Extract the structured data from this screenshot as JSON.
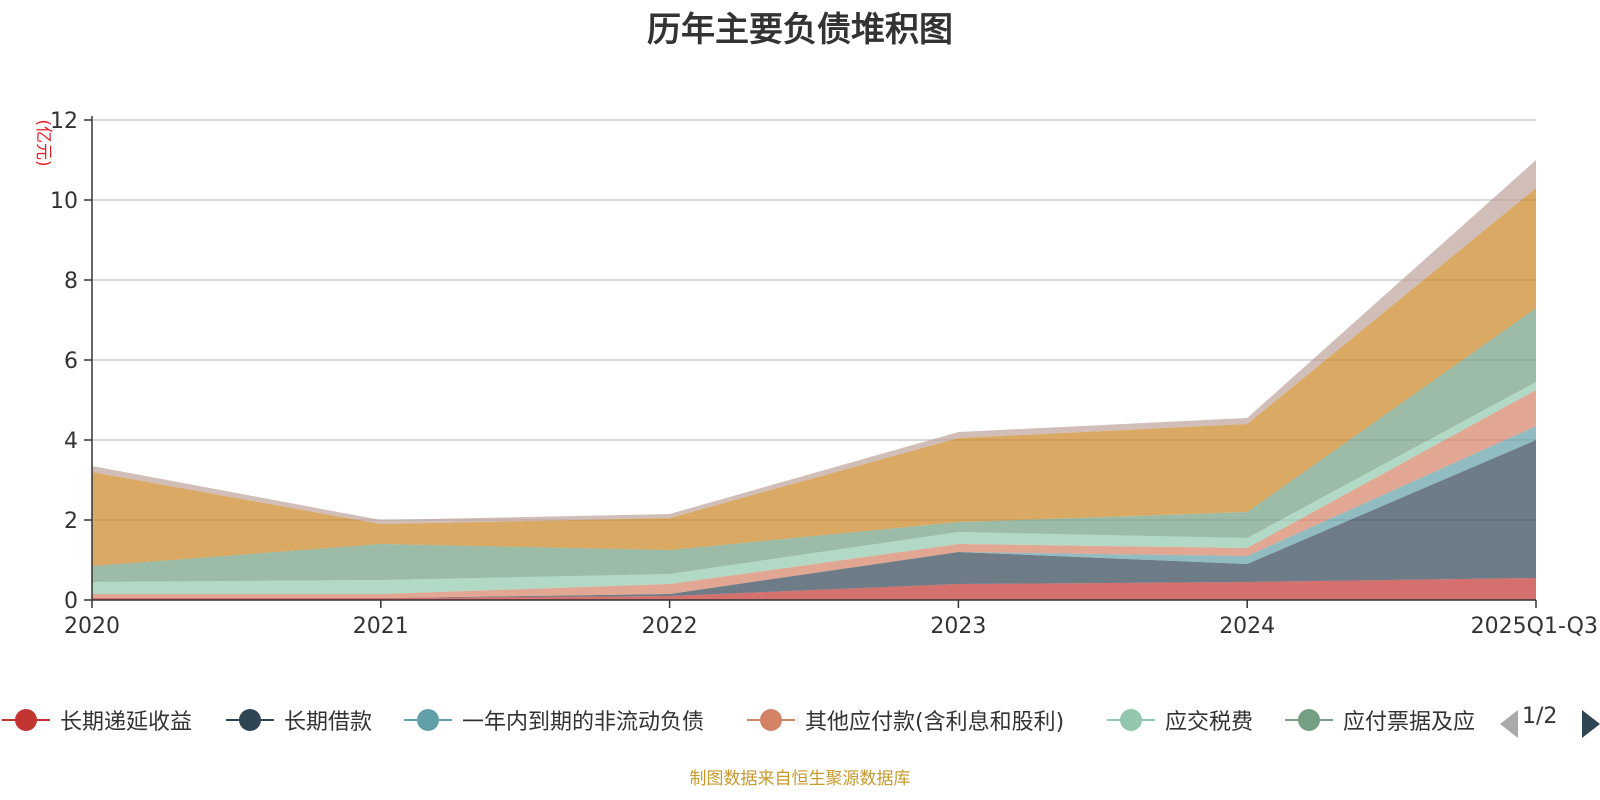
{
  "chart_data": {
    "type": "area",
    "stacked": true,
    "title": "历年主要负债堆积图",
    "ylabel": "(亿元)",
    "xlabel": "",
    "ylim": [
      0,
      12
    ],
    "yticks": [
      0,
      2,
      4,
      6,
      8,
      10,
      12
    ],
    "grid": true,
    "legend_position": "bottom",
    "categories": [
      "2020",
      "2021",
      "2022",
      "2023",
      "2024",
      "2025Q1-Q3"
    ],
    "series": [
      {
        "name": "长期递延收益",
        "color": "#c23531",
        "values": [
          0.05,
          0.05,
          0.1,
          0.4,
          0.45,
          0.55
        ]
      },
      {
        "name": "长期借款",
        "color": "#2f4554",
        "values": [
          0,
          0,
          0.05,
          0.8,
          0.45,
          3.45
        ]
      },
      {
        "name": "一年内到期的非流动负债",
        "color": "#61a0a8",
        "values": [
          0,
          0,
          0,
          0,
          0.2,
          0.35
        ]
      },
      {
        "name": "其他应付款(含利息和股利)",
        "color": "#d48265",
        "values": [
          0.1,
          0.1,
          0.25,
          0.2,
          0.2,
          0.9
        ]
      },
      {
        "name": "应交税费",
        "color": "#91c7ae",
        "values": [
          0.3,
          0.35,
          0.25,
          0.3,
          0.25,
          0.2
        ]
      },
      {
        "name": "应付票据及应付账款",
        "color": "#749f83",
        "values": [
          0.4,
          0.9,
          0.6,
          0.25,
          0.65,
          1.85
        ]
      },
      {
        "name": "",
        "color": "#ca8622",
        "values": [
          2.35,
          0.5,
          0.8,
          2.1,
          2.2,
          3.0
        ]
      },
      {
        "name": "",
        "color": "#bda29a",
        "values": [
          0.15,
          0.1,
          0.1,
          0.15,
          0.15,
          0.7
        ]
      }
    ],
    "legend": {
      "visible_items": [
        "长期递延收益",
        "长期借款",
        "一年内到期的非流动负债",
        "其他应付款(含利息和股利)",
        "应交税费",
        "应付票据及应"
      ],
      "page_text": "1/2"
    },
    "source_note": "制图数据来自恒生聚源数据库"
  }
}
